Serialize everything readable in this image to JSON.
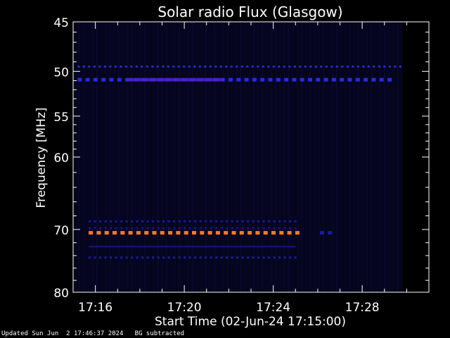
{
  "chart_data": {
    "type": "heatmap",
    "title": "Solar radio Flux (Glasgow)",
    "xlabel": "Start Time (02-Jun-24 17:15:00)",
    "ylabel": "Frequency [MHz]",
    "x_range_minutes": [
      17.15,
      17.31
    ],
    "xticks": [
      {
        "label": "17:16",
        "minutes": 16
      },
      {
        "label": "17:20",
        "minutes": 20
      },
      {
        "label": "17:24",
        "minutes": 24
      },
      {
        "label": "17:28",
        "minutes": 28
      }
    ],
    "ylim": [
      45,
      80
    ],
    "yticks": [
      45,
      50,
      55,
      60,
      70,
      80
    ],
    "yscale": "log",
    "data_end_minutes": 29.8,
    "bright_channels_end_minutes": 25.0,
    "channels": [
      {
        "freq": 49.5,
        "color": "#2a2ad8",
        "start": 15.2,
        "end": 29.8,
        "dashed": true,
        "dash": "dots"
      },
      {
        "freq": 50.9,
        "color": "#2a2ae6",
        "start": 15.2,
        "end": 29.3,
        "dashed": true,
        "dash": "blocks"
      },
      {
        "freq": 50.9,
        "color": "#5a1ab0",
        "start": 17.5,
        "end": 21.5,
        "dashed": true,
        "dash": "blocks"
      },
      {
        "freq": 68.8,
        "color": "#1a1aa0",
        "start": 15.7,
        "end": 25.0,
        "dashed": true,
        "dash": "dots"
      },
      {
        "freq": 69.8,
        "color": "#14148a",
        "start": 15.7,
        "end": 25.0,
        "dashed": true,
        "dash": "dots"
      },
      {
        "freq": 70.5,
        "color": "#ff7a1a",
        "start": 15.7,
        "end": 25.0,
        "dashed": true,
        "dash": "blocks"
      },
      {
        "freq": 72.6,
        "color": "#14148a",
        "start": 15.7,
        "end": 25.0,
        "dashed": false
      },
      {
        "freq": 74.3,
        "color": "#1c1ca8",
        "start": 15.7,
        "end": 25.0,
        "dashed": true,
        "dash": "dots"
      },
      {
        "freq": 70.5,
        "color": "#1a1aa8",
        "start": 26.1,
        "end": 26.8,
        "dashed": true,
        "dash": "blocks"
      }
    ],
    "colors": {
      "background_field": "#05051e",
      "axis": "#ffffff"
    }
  },
  "footer": {
    "updated": "Updated Sun Jun  2 17:46:37 2024",
    "note": "BG subtracted"
  }
}
